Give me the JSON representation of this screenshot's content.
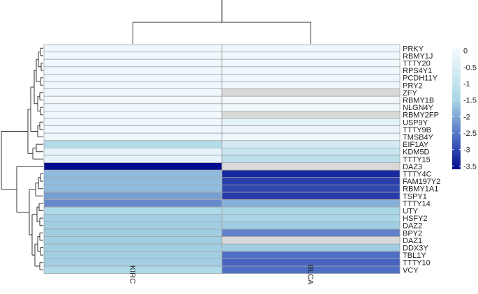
{
  "chart_data": {
    "type": "heatmap",
    "title": "",
    "columns": [
      "KIRC",
      "BLCA"
    ],
    "rows": [
      "PRKY",
      "RBMY1J",
      "TTTY20",
      "RPS4Y1",
      "PCDH11Y",
      "PRY2",
      "ZFY",
      "RBMY1B",
      "NLGN4Y",
      "RBMY2FP",
      "USP9Y",
      "TTTY9B",
      "TMSB4Y",
      "EIF1AY",
      "KDM5D",
      "TTTY15",
      "DAZ3",
      "TTTY4C",
      "FAM197Y2",
      "RBMY1A1",
      "TSPY1",
      "TTTY14",
      "UTY",
      "HSFY2",
      "DAZ2",
      "BPY2",
      "DAZ1",
      "DDX3Y",
      "TBL1Y",
      "TTTY10",
      "VCY"
    ],
    "values": [
      [
        -0.05,
        -0.05
      ],
      [
        -0.05,
        -0.05
      ],
      [
        -0.05,
        -0.05
      ],
      [
        -0.05,
        -0.05
      ],
      [
        -0.05,
        -0.05
      ],
      [
        -0.05,
        -0.05
      ],
      [
        -0.05,
        null
      ],
      [
        -0.05,
        -0.05
      ],
      [
        -0.05,
        -0.05
      ],
      [
        -0.05,
        null
      ],
      [
        -0.1,
        -0.3
      ],
      [
        -0.1,
        -0.15
      ],
      [
        -0.1,
        -0.1
      ],
      [
        -1.3,
        -0.6
      ],
      [
        -0.3,
        -0.9
      ],
      [
        -0.3,
        -1.1
      ],
      [
        -3.6,
        null
      ],
      [
        -1.8,
        -3.3
      ],
      [
        -1.8,
        -3.1
      ],
      [
        -1.8,
        -3.0
      ],
      [
        -2.1,
        -3.1
      ],
      [
        -2.3,
        -1.9
      ],
      [
        -1.4,
        -1.5
      ],
      [
        -1.6,
        -1.5
      ],
      [
        -1.6,
        -1.6
      ],
      [
        -1.6,
        -2.4
      ],
      [
        -1.6,
        null
      ],
      [
        -1.6,
        -1.6
      ],
      [
        -1.6,
        -2.6
      ],
      [
        -1.6,
        -2.7
      ],
      [
        -1.4,
        -2.6
      ]
    ],
    "legend": {
      "ticks": [
        0,
        -0.5,
        -1,
        -1.5,
        -2,
        -2.5,
        -3,
        -3.5
      ],
      "min": -3.6,
      "max": 0.1
    },
    "missing_color": "#d9d9d9",
    "colors": {
      "high": "#f7fbff",
      "mid": "#a9d7e6",
      "low_mid": "#4f6fc4",
      "low": "#000b8f",
      "border": "#a6a6a6"
    }
  }
}
